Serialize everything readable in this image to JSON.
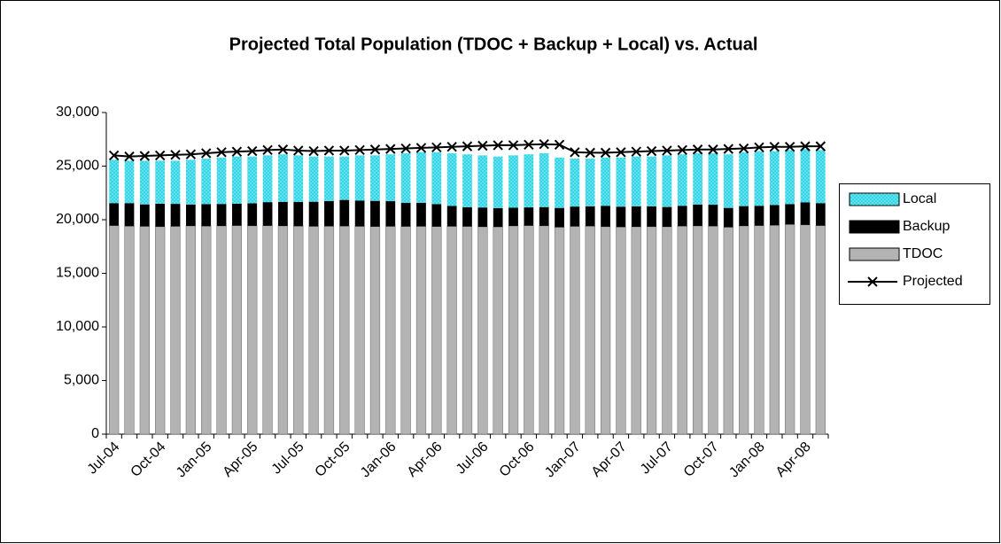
{
  "chart_data": {
    "type": "bar",
    "title": "Projected Total Population (TDOC + Backup + Local) vs. Actual",
    "stacked": true,
    "categories": [
      "Jul-04",
      null,
      null,
      "Oct-04",
      null,
      null,
      "Jan-05",
      null,
      null,
      "Apr-05",
      null,
      null,
      "Jul-05",
      null,
      null,
      "Oct-05",
      null,
      null,
      "Jan-06",
      null,
      null,
      "Apr-06",
      null,
      null,
      "Jul-06",
      null,
      null,
      "Oct-06",
      null,
      null,
      "Jan-07",
      null,
      null,
      "Apr-07",
      null,
      null,
      "Jul-07",
      null,
      null,
      "Oct-07",
      null,
      null,
      "Jan-08",
      null,
      null,
      "Apr-08",
      null
    ],
    "series": [
      {
        "name": "TDOC",
        "color": "#b3b3b3",
        "values": [
          19450,
          19400,
          19380,
          19350,
          19380,
          19420,
          19400,
          19420,
          19450,
          19430,
          19440,
          19420,
          19400,
          19380,
          19390,
          19400,
          19380,
          19360,
          19380,
          19370,
          19380,
          19360,
          19380,
          19370,
          19340,
          19330,
          19420,
          19450,
          19430,
          19300,
          19380,
          19400,
          19350,
          19320,
          19340,
          19350,
          19340,
          19400,
          19420,
          19400,
          19300,
          19420,
          19450,
          19480,
          19560,
          19520,
          19450
        ]
      },
      {
        "name": "Backup",
        "color": "#000000",
        "values": [
          2100,
          2150,
          2050,
          2150,
          2100,
          2000,
          2050,
          2050,
          2050,
          2100,
          2200,
          2250,
          2250,
          2300,
          2350,
          2450,
          2400,
          2400,
          2350,
          2200,
          2200,
          2100,
          1900,
          1800,
          1800,
          1750,
          1700,
          1700,
          1750,
          1800,
          1850,
          1850,
          1950,
          1900,
          1900,
          1900,
          1850,
          1900,
          2000,
          2000,
          1800,
          1850,
          1850,
          1900,
          1900,
          2100,
          2100
        ]
      },
      {
        "name": "Local",
        "color": "#33d6e6",
        "values": [
          4050,
          3950,
          4070,
          4000,
          4020,
          4180,
          4250,
          4330,
          4400,
          4370,
          4360,
          4430,
          4350,
          4220,
          4160,
          4050,
          4220,
          4240,
          4370,
          4630,
          4720,
          4840,
          4920,
          4930,
          4860,
          4820,
          4880,
          4950,
          5020,
          4700,
          4470,
          4450,
          4500,
          4580,
          4660,
          4650,
          4810,
          4800,
          4780,
          4800,
          5000,
          5030,
          5100,
          5020,
          5040,
          4980,
          4950
        ]
      },
      {
        "name": "Projected",
        "type": "line",
        "color": "#000000",
        "values": [
          26000,
          25900,
          25950,
          26000,
          26050,
          26100,
          26200,
          26300,
          26350,
          26400,
          26500,
          26550,
          26450,
          26400,
          26450,
          26450,
          26500,
          26550,
          26600,
          26650,
          26700,
          26750,
          26800,
          26850,
          26900,
          26950,
          26950,
          27000,
          27050,
          27000,
          26300,
          26250,
          26250,
          26300,
          26350,
          26400,
          26450,
          26500,
          26550,
          26550,
          26600,
          26650,
          26750,
          26800,
          26800,
          26850,
          26850
        ]
      }
    ],
    "ylim": [
      0,
      30000
    ],
    "yticks": [
      0,
      {
        "value": 5000,
        "label": "5,000"
      },
      {
        "value": 10000,
        "label": "10,000"
      },
      {
        "value": 15000,
        "label": "15,000"
      },
      {
        "value": 20000,
        "label": "20,000"
      },
      {
        "value": 25000,
        "label": "25,000"
      },
      {
        "value": 30000,
        "label": "30,000"
      }
    ],
    "grid": false,
    "legend": "right"
  }
}
